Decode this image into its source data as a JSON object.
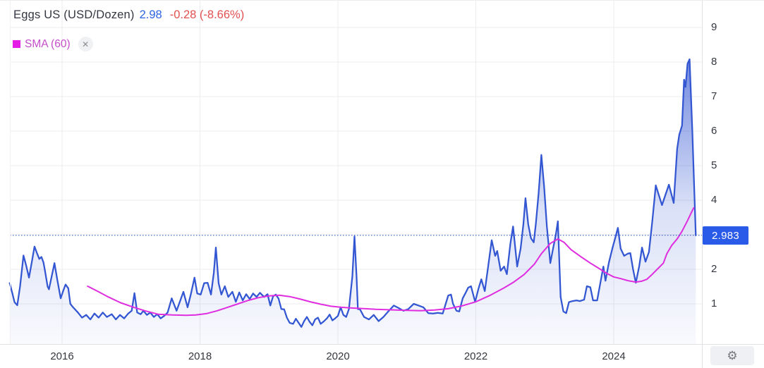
{
  "header": {
    "title": "Eggs US (USD/Dozen)",
    "last_price": "2.98",
    "change": "-0.28 (-8.66%)",
    "title_color": "#343741",
    "price_color": "#2d64e0",
    "change_color": "#e25050"
  },
  "legend": {
    "label": "SMA (60)",
    "close_icon": "✕",
    "swatch_color": "#e51ce5",
    "text_color": "#c44ec9"
  },
  "badge": {
    "label": "2.983",
    "bg_color": "#2a5ae8"
  },
  "gear": {
    "icon": "⚙"
  },
  "chart_data": {
    "type": "area",
    "title": "Eggs US (USD/Dozen)",
    "legend_position": "top-left",
    "y_axis_side": "right",
    "x_range": [
      2015.24,
      2025.27
    ],
    "y_range": [
      0.2,
      9.6
    ],
    "grid": true,
    "grid_color": "#ececec",
    "axis_border_color": "#dfe1e5",
    "x_ticks": [
      {
        "label": "2016",
        "year": 2016
      },
      {
        "label": "2018",
        "year": 2018
      },
      {
        "label": "2020",
        "year": 2020
      },
      {
        "label": "2022",
        "year": 2022
      },
      {
        "label": "2024",
        "year": 2024
      }
    ],
    "y_ticks": [
      1,
      2,
      3,
      4,
      5,
      6,
      7,
      8,
      9
    ],
    "price_line": 2.983,
    "price_line_color": "#2050d0",
    "series": [
      {
        "name": "Eggs US",
        "type": "area",
        "color": "#3356d2",
        "points": [
          [
            2015.24,
            1.6
          ],
          [
            2015.28,
            1.3
          ],
          [
            2015.31,
            1.05
          ],
          [
            2015.35,
            0.96
          ],
          [
            2015.39,
            1.5
          ],
          [
            2015.44,
            2.4
          ],
          [
            2015.48,
            2.1
          ],
          [
            2015.52,
            1.76
          ],
          [
            2015.56,
            2.2
          ],
          [
            2015.6,
            2.66
          ],
          [
            2015.63,
            2.5
          ],
          [
            2015.67,
            2.3
          ],
          [
            2015.7,
            2.36
          ],
          [
            2015.73,
            2.2
          ],
          [
            2015.75,
            1.98
          ],
          [
            2015.79,
            1.5
          ],
          [
            2015.81,
            1.42
          ],
          [
            2015.85,
            1.8
          ],
          [
            2015.89,
            2.18
          ],
          [
            2015.93,
            1.7
          ],
          [
            2015.98,
            1.16
          ],
          [
            2016.02,
            1.4
          ],
          [
            2016.05,
            1.56
          ],
          [
            2016.09,
            1.45
          ],
          [
            2016.12,
            1.0
          ],
          [
            2016.16,
            0.9
          ],
          [
            2016.23,
            0.75
          ],
          [
            2016.29,
            0.6
          ],
          [
            2016.35,
            0.68
          ],
          [
            2016.41,
            0.55
          ],
          [
            2016.47,
            0.72
          ],
          [
            2016.53,
            0.6
          ],
          [
            2016.59,
            0.75
          ],
          [
            2016.65,
            0.62
          ],
          [
            2016.72,
            0.7
          ],
          [
            2016.78,
            0.55
          ],
          [
            2016.84,
            0.68
          ],
          [
            2016.9,
            0.58
          ],
          [
            2016.96,
            0.72
          ],
          [
            2017.01,
            0.8
          ],
          [
            2017.05,
            1.31
          ],
          [
            2017.09,
            0.75
          ],
          [
            2017.14,
            0.7
          ],
          [
            2017.18,
            0.8
          ],
          [
            2017.23,
            0.68
          ],
          [
            2017.28,
            0.75
          ],
          [
            2017.33,
            0.62
          ],
          [
            2017.38,
            0.7
          ],
          [
            2017.43,
            0.58
          ],
          [
            2017.48,
            0.65
          ],
          [
            2017.53,
            0.75
          ],
          [
            2017.59,
            1.16
          ],
          [
            2017.66,
            0.8
          ],
          [
            2017.76,
            1.35
          ],
          [
            2017.82,
            0.9
          ],
          [
            2017.87,
            1.3
          ],
          [
            2017.92,
            1.76
          ],
          [
            2017.96,
            1.3
          ],
          [
            2018.01,
            1.27
          ],
          [
            2018.06,
            1.6
          ],
          [
            2018.11,
            1.61
          ],
          [
            2018.16,
            1.27
          ],
          [
            2018.2,
            1.9
          ],
          [
            2018.23,
            2.63
          ],
          [
            2018.27,
            1.6
          ],
          [
            2018.31,
            1.27
          ],
          [
            2018.36,
            1.51
          ],
          [
            2018.41,
            1.2
          ],
          [
            2018.47,
            1.35
          ],
          [
            2018.52,
            1.06
          ],
          [
            2018.57,
            1.33
          ],
          [
            2018.62,
            1.1
          ],
          [
            2018.67,
            1.28
          ],
          [
            2018.72,
            1.14
          ],
          [
            2018.77,
            1.3
          ],
          [
            2018.82,
            1.2
          ],
          [
            2018.87,
            1.32
          ],
          [
            2018.93,
            1.2
          ],
          [
            2018.98,
            1.28
          ],
          [
            2019.02,
            0.95
          ],
          [
            2019.06,
            1.22
          ],
          [
            2019.1,
            1.27
          ],
          [
            2019.14,
            1.15
          ],
          [
            2019.18,
            0.85
          ],
          [
            2019.22,
            0.84
          ],
          [
            2019.26,
            0.6
          ],
          [
            2019.3,
            0.45
          ],
          [
            2019.35,
            0.42
          ],
          [
            2019.39,
            0.57
          ],
          [
            2019.43,
            0.45
          ],
          [
            2019.47,
            0.33
          ],
          [
            2019.51,
            0.5
          ],
          [
            2019.55,
            0.62
          ],
          [
            2019.59,
            0.48
          ],
          [
            2019.63,
            0.38
          ],
          [
            2019.67,
            0.55
          ],
          [
            2019.71,
            0.6
          ],
          [
            2019.75,
            0.42
          ],
          [
            2019.8,
            0.5
          ],
          [
            2019.84,
            0.58
          ],
          [
            2019.88,
            0.69
          ],
          [
            2019.92,
            0.52
          ],
          [
            2019.96,
            0.58
          ],
          [
            2020.0,
            0.65
          ],
          [
            2020.04,
            0.9
          ],
          [
            2020.08,
            0.68
          ],
          [
            2020.12,
            0.62
          ],
          [
            2020.16,
            0.85
          ],
          [
            2020.21,
            1.8
          ],
          [
            2020.24,
            2.95
          ],
          [
            2020.27,
            1.8
          ],
          [
            2020.29,
            0.85
          ],
          [
            2020.32,
            0.84
          ],
          [
            2020.38,
            0.62
          ],
          [
            2020.45,
            0.55
          ],
          [
            2020.52,
            0.68
          ],
          [
            2020.59,
            0.5
          ],
          [
            2020.66,
            0.62
          ],
          [
            2020.74,
            0.8
          ],
          [
            2020.81,
            0.95
          ],
          [
            2020.88,
            0.88
          ],
          [
            2020.95,
            0.8
          ],
          [
            2021.02,
            0.85
          ],
          [
            2021.1,
            1.0
          ],
          [
            2021.17,
            0.95
          ],
          [
            2021.24,
            0.9
          ],
          [
            2021.31,
            0.73
          ],
          [
            2021.38,
            0.72
          ],
          [
            2021.45,
            0.74
          ],
          [
            2021.52,
            0.72
          ],
          [
            2021.6,
            1.24
          ],
          [
            2021.64,
            1.27
          ],
          [
            2021.67,
            1.0
          ],
          [
            2021.72,
            0.8
          ],
          [
            2021.76,
            0.78
          ],
          [
            2021.81,
            1.16
          ],
          [
            2021.85,
            1.31
          ],
          [
            2021.89,
            1.47
          ],
          [
            2021.93,
            1.51
          ],
          [
            2021.99,
            1.06
          ],
          [
            2022.04,
            1.45
          ],
          [
            2022.08,
            1.71
          ],
          [
            2022.13,
            1.37
          ],
          [
            2022.18,
            2.1
          ],
          [
            2022.23,
            2.84
          ],
          [
            2022.28,
            2.39
          ],
          [
            2022.31,
            2.53
          ],
          [
            2022.36,
            1.96
          ],
          [
            2022.41,
            2.08
          ],
          [
            2022.45,
            1.86
          ],
          [
            2022.5,
            2.73
          ],
          [
            2022.54,
            3.24
          ],
          [
            2022.6,
            2.08
          ],
          [
            2022.65,
            2.6
          ],
          [
            2022.69,
            3.3
          ],
          [
            2022.72,
            4.06
          ],
          [
            2022.76,
            3.3
          ],
          [
            2022.8,
            2.9
          ],
          [
            2022.84,
            2.78
          ],
          [
            2022.87,
            3.3
          ],
          [
            2022.91,
            4.2
          ],
          [
            2022.95,
            5.31
          ],
          [
            2022.99,
            4.4
          ],
          [
            2023.03,
            3.24
          ],
          [
            2023.08,
            2.18
          ],
          [
            2023.12,
            2.6
          ],
          [
            2023.16,
            3.0
          ],
          [
            2023.19,
            3.39
          ],
          [
            2023.23,
            1.2
          ],
          [
            2023.27,
            0.78
          ],
          [
            2023.31,
            0.73
          ],
          [
            2023.35,
            1.05
          ],
          [
            2023.4,
            1.08
          ],
          [
            2023.46,
            1.1
          ],
          [
            2023.51,
            1.08
          ],
          [
            2023.57,
            1.12
          ],
          [
            2023.61,
            1.51
          ],
          [
            2023.66,
            1.48
          ],
          [
            2023.7,
            1.1
          ],
          [
            2023.76,
            1.1
          ],
          [
            2023.82,
            1.76
          ],
          [
            2023.85,
            2.08
          ],
          [
            2023.88,
            1.67
          ],
          [
            2023.93,
            2.2
          ],
          [
            2023.98,
            2.6
          ],
          [
            2024.02,
            2.9
          ],
          [
            2024.06,
            3.2
          ],
          [
            2024.1,
            2.6
          ],
          [
            2024.15,
            2.39
          ],
          [
            2024.2,
            2.45
          ],
          [
            2024.24,
            2.47
          ],
          [
            2024.28,
            2.0
          ],
          [
            2024.32,
            1.61
          ],
          [
            2024.37,
            2.1
          ],
          [
            2024.41,
            2.63
          ],
          [
            2024.46,
            2.22
          ],
          [
            2024.51,
            2.5
          ],
          [
            2024.56,
            3.4
          ],
          [
            2024.61,
            4.43
          ],
          [
            2024.7,
            3.86
          ],
          [
            2024.8,
            4.45
          ],
          [
            2024.87,
            3.92
          ],
          [
            2024.92,
            5.49
          ],
          [
            2024.95,
            5.9
          ],
          [
            2024.99,
            6.16
          ],
          [
            2025.02,
            7.49
          ],
          [
            2025.04,
            7.28
          ],
          [
            2025.07,
            7.95
          ],
          [
            2025.1,
            8.08
          ],
          [
            2025.14,
            6.0
          ],
          [
            2025.19,
            2.983
          ]
        ]
      },
      {
        "name": "SMA (60)",
        "type": "line",
        "color": "#df2ddf",
        "points": [
          [
            2016.37,
            1.51
          ],
          [
            2016.52,
            1.36
          ],
          [
            2016.67,
            1.2
          ],
          [
            2016.85,
            1.03
          ],
          [
            2017.04,
            0.9
          ],
          [
            2017.2,
            0.8
          ],
          [
            2017.39,
            0.7
          ],
          [
            2017.6,
            0.68
          ],
          [
            2017.8,
            0.67
          ],
          [
            2017.94,
            0.68
          ],
          [
            2018.1,
            0.72
          ],
          [
            2018.25,
            0.8
          ],
          [
            2018.4,
            0.9
          ],
          [
            2018.55,
            1.0
          ],
          [
            2018.7,
            1.1
          ],
          [
            2018.85,
            1.18
          ],
          [
            2019.0,
            1.23
          ],
          [
            2019.15,
            1.25
          ],
          [
            2019.3,
            1.21
          ],
          [
            2019.45,
            1.14
          ],
          [
            2019.6,
            1.06
          ],
          [
            2019.75,
            0.99
          ],
          [
            2019.9,
            0.93
          ],
          [
            2020.05,
            0.9
          ],
          [
            2020.2,
            0.88
          ],
          [
            2020.4,
            0.86
          ],
          [
            2020.55,
            0.84
          ],
          [
            2020.7,
            0.83
          ],
          [
            2020.85,
            0.82
          ],
          [
            2021.0,
            0.81
          ],
          [
            2021.2,
            0.8
          ],
          [
            2021.4,
            0.82
          ],
          [
            2021.6,
            0.86
          ],
          [
            2021.8,
            0.94
          ],
          [
            2022.0,
            1.06
          ],
          [
            2022.2,
            1.24
          ],
          [
            2022.4,
            1.45
          ],
          [
            2022.55,
            1.63
          ],
          [
            2022.7,
            1.85
          ],
          [
            2022.85,
            2.15
          ],
          [
            2022.95,
            2.45
          ],
          [
            2023.08,
            2.75
          ],
          [
            2023.19,
            2.88
          ],
          [
            2023.28,
            2.78
          ],
          [
            2023.38,
            2.57
          ],
          [
            2023.52,
            2.37
          ],
          [
            2023.66,
            2.18
          ],
          [
            2023.79,
            2.02
          ],
          [
            2023.9,
            1.88
          ],
          [
            2024.0,
            1.78
          ],
          [
            2024.1,
            1.73
          ],
          [
            2024.21,
            1.67
          ],
          [
            2024.32,
            1.63
          ],
          [
            2024.41,
            1.66
          ],
          [
            2024.48,
            1.71
          ],
          [
            2024.54,
            1.82
          ],
          [
            2024.64,
            2.02
          ],
          [
            2024.72,
            2.18
          ],
          [
            2024.77,
            2.45
          ],
          [
            2024.84,
            2.69
          ],
          [
            2024.92,
            2.88
          ],
          [
            2024.99,
            3.1
          ],
          [
            2025.07,
            3.41
          ],
          [
            2025.12,
            3.62
          ],
          [
            2025.16,
            3.78
          ]
        ]
      }
    ]
  }
}
